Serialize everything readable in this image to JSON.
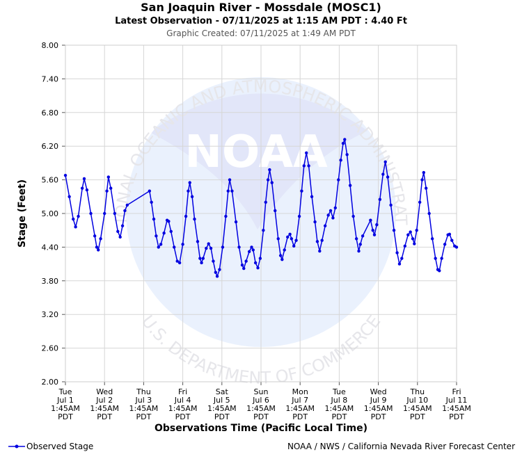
{
  "chart_data": {
    "type": "line",
    "title": "San Joaquin River - Mossdale (MOSC1)",
    "subtitle": "Latest Observation - 07/11/2025 at 1:15 AM PDT : 4.40 Ft",
    "created": "Graphic Created: 07/11/2025 at 1:49 AM PDT",
    "xlabel": "Observations Time (Pacific Local Time)",
    "ylabel": "Stage (Feet)",
    "ylim": [
      2.0,
      8.0
    ],
    "yticks": [
      "2.00",
      "2.60",
      "3.20",
      "3.80",
      "4.40",
      "5.00",
      "5.60",
      "6.20",
      "6.80",
      "7.40",
      "8.00"
    ],
    "xlim_days": [
      0,
      10
    ],
    "xticks": [
      [
        "Tue",
        "Jul 1",
        "1:45AM",
        "PDT"
      ],
      [
        "Wed",
        "Jul 2",
        "1:45AM",
        "PDT"
      ],
      [
        "Thu",
        "Jul 3",
        "1:45AM",
        "PDT"
      ],
      [
        "Fri",
        "Jul 4",
        "1:45AM",
        "PDT"
      ],
      [
        "Sat",
        "Jul 5",
        "1:45AM",
        "PDT"
      ],
      [
        "Sun",
        "Jul 6",
        "1:45AM",
        "PDT"
      ],
      [
        "Mon",
        "Jul 7",
        "1:45AM",
        "PDT"
      ],
      [
        "Tue",
        "Jul 8",
        "1:45AM",
        "PDT"
      ],
      [
        "Wed",
        "Jul 9",
        "1:45AM",
        "PDT"
      ],
      [
        "Thu",
        "Jul 10",
        "1:45AM",
        "PDT"
      ],
      [
        "Fri",
        "Jul 11",
        "1:45AM",
        "PDT"
      ]
    ],
    "grid": true,
    "legend_position": "bottom-left",
    "series": [
      {
        "name": "Observed Stage",
        "color": "#0000e0",
        "points": [
          [
            0.0,
            5.68
          ],
          [
            0.1,
            5.3
          ],
          [
            0.2,
            4.9
          ],
          [
            0.26,
            4.76
          ],
          [
            0.33,
            4.95
          ],
          [
            0.43,
            5.45
          ],
          [
            0.48,
            5.62
          ],
          [
            0.55,
            5.42
          ],
          [
            0.65,
            5.0
          ],
          [
            0.75,
            4.6
          ],
          [
            0.8,
            4.4
          ],
          [
            0.84,
            4.35
          ],
          [
            0.9,
            4.55
          ],
          [
            1.0,
            5.0
          ],
          [
            1.06,
            5.4
          ],
          [
            1.1,
            5.65
          ],
          [
            1.16,
            5.45
          ],
          [
            1.26,
            5.0
          ],
          [
            1.34,
            4.68
          ],
          [
            1.4,
            4.58
          ],
          [
            1.46,
            4.78
          ],
          [
            1.52,
            5.05
          ],
          [
            1.58,
            5.15
          ],
          [
            2.15,
            5.4
          ],
          [
            2.2,
            5.2
          ],
          [
            2.26,
            4.9
          ],
          [
            2.32,
            4.6
          ],
          [
            2.38,
            4.4
          ],
          [
            2.44,
            4.45
          ],
          [
            2.52,
            4.65
          ],
          [
            2.6,
            4.88
          ],
          [
            2.64,
            4.86
          ],
          [
            2.7,
            4.68
          ],
          [
            2.78,
            4.4
          ],
          [
            2.86,
            4.15
          ],
          [
            2.92,
            4.12
          ],
          [
            3.0,
            4.45
          ],
          [
            3.08,
            4.95
          ],
          [
            3.14,
            5.4
          ],
          [
            3.18,
            5.55
          ],
          [
            3.24,
            5.3
          ],
          [
            3.3,
            4.9
          ],
          [
            3.38,
            4.5
          ],
          [
            3.44,
            4.2
          ],
          [
            3.48,
            4.12
          ],
          [
            3.52,
            4.2
          ],
          [
            3.6,
            4.38
          ],
          [
            3.66,
            4.46
          ],
          [
            3.72,
            4.38
          ],
          [
            3.78,
            4.15
          ],
          [
            3.84,
            3.95
          ],
          [
            3.88,
            3.88
          ],
          [
            3.94,
            4.0
          ],
          [
            4.02,
            4.4
          ],
          [
            4.1,
            4.95
          ],
          [
            4.16,
            5.4
          ],
          [
            4.2,
            5.6
          ],
          [
            4.26,
            5.4
          ],
          [
            4.36,
            4.85
          ],
          [
            4.44,
            4.4
          ],
          [
            4.52,
            4.08
          ],
          [
            4.56,
            4.02
          ],
          [
            4.62,
            4.15
          ],
          [
            4.7,
            4.32
          ],
          [
            4.76,
            4.4
          ],
          [
            4.8,
            4.35
          ],
          [
            4.86,
            4.12
          ],
          [
            4.92,
            4.03
          ],
          [
            4.98,
            4.2
          ],
          [
            5.06,
            4.7
          ],
          [
            5.12,
            5.2
          ],
          [
            5.18,
            5.6
          ],
          [
            5.22,
            5.78
          ],
          [
            5.28,
            5.55
          ],
          [
            5.36,
            5.05
          ],
          [
            5.44,
            4.55
          ],
          [
            5.5,
            4.25
          ],
          [
            5.54,
            4.18
          ],
          [
            5.6,
            4.35
          ],
          [
            5.68,
            4.58
          ],
          [
            5.74,
            4.63
          ],
          [
            5.78,
            4.55
          ],
          [
            5.84,
            4.42
          ],
          [
            5.9,
            4.52
          ],
          [
            5.98,
            4.95
          ],
          [
            6.04,
            5.4
          ],
          [
            6.1,
            5.85
          ],
          [
            6.16,
            6.08
          ],
          [
            6.22,
            5.85
          ],
          [
            6.3,
            5.3
          ],
          [
            6.38,
            4.85
          ],
          [
            6.44,
            4.5
          ],
          [
            6.5,
            4.33
          ],
          [
            6.56,
            4.52
          ],
          [
            6.64,
            4.78
          ],
          [
            6.72,
            4.97
          ],
          [
            6.78,
            5.05
          ],
          [
            6.84,
            4.92
          ],
          [
            6.9,
            5.1
          ],
          [
            6.98,
            5.6
          ],
          [
            7.04,
            5.95
          ],
          [
            7.1,
            6.25
          ],
          [
            7.14,
            6.32
          ],
          [
            7.2,
            6.05
          ],
          [
            7.28,
            5.5
          ],
          [
            7.36,
            4.95
          ],
          [
            7.44,
            4.55
          ],
          [
            7.5,
            4.33
          ],
          [
            7.54,
            4.45
          ],
          [
            7.6,
            4.6
          ],
          [
            7.8,
            4.88
          ],
          [
            7.86,
            4.7
          ],
          [
            7.9,
            4.62
          ],
          [
            7.96,
            4.8
          ],
          [
            8.04,
            5.25
          ],
          [
            8.12,
            5.7
          ],
          [
            8.18,
            5.92
          ],
          [
            8.24,
            5.65
          ],
          [
            8.32,
            5.15
          ],
          [
            8.4,
            4.7
          ],
          [
            8.48,
            4.3
          ],
          [
            8.54,
            4.1
          ],
          [
            8.6,
            4.2
          ],
          [
            8.68,
            4.42
          ],
          [
            8.76,
            4.62
          ],
          [
            8.82,
            4.67
          ],
          [
            8.88,
            4.55
          ],
          [
            8.92,
            4.46
          ],
          [
            8.98,
            4.7
          ],
          [
            9.06,
            5.2
          ],
          [
            9.12,
            5.6
          ],
          [
            9.16,
            5.73
          ],
          [
            9.22,
            5.45
          ],
          [
            9.3,
            5.0
          ],
          [
            9.38,
            4.55
          ],
          [
            9.46,
            4.2
          ],
          [
            9.52,
            4.0
          ],
          [
            9.56,
            3.98
          ],
          [
            9.62,
            4.2
          ],
          [
            9.7,
            4.45
          ],
          [
            9.78,
            4.62
          ],
          [
            9.82,
            4.63
          ],
          [
            9.88,
            4.52
          ],
          [
            9.95,
            4.42
          ],
          [
            10.0,
            4.4
          ]
        ]
      }
    ]
  },
  "legend": {
    "label": "Observed Stage"
  },
  "credit": "NOAA / NWS / California Nevada River Forecast Center",
  "watermark": {
    "logo_text": "NOAA",
    "arc_top": "NATIONAL OCEANIC AND ATMOSPHERIC ADMINISTRATION",
    "arc_bottom": "U.S. DEPARTMENT OF COMMERCE"
  }
}
